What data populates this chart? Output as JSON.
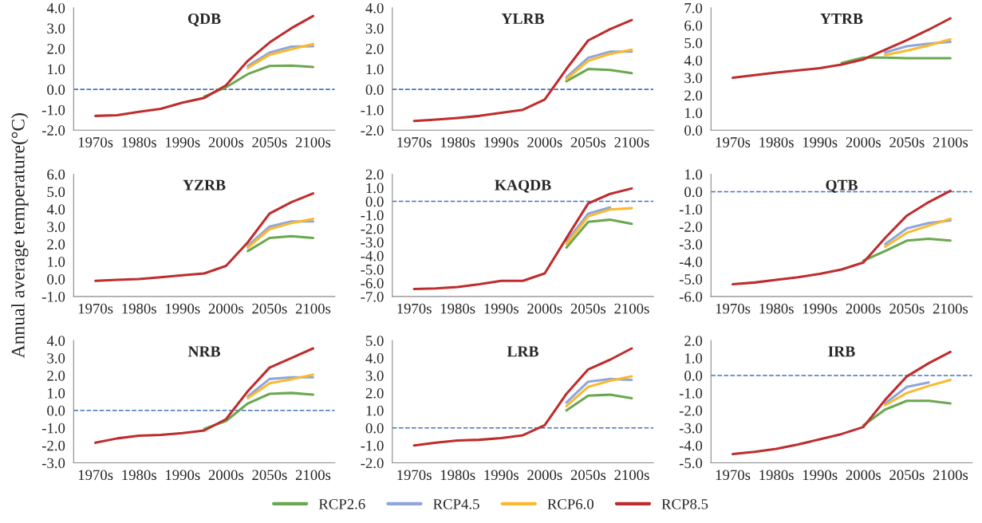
{
  "chart_data": [
    {
      "type": "line",
      "title": "QDB",
      "legend": "bottom",
      "categories": [
        "1970s",
        null,
        "1980s",
        null,
        "1990s",
        null,
        "2000s",
        null,
        "2050s",
        null,
        "2100s"
      ],
      "ylim": [
        -2,
        4
      ],
      "yticks": [
        {
          "value": -2,
          "label": "-2.0"
        },
        {
          "value": -1,
          "label": "-1.0"
        },
        {
          "value": 0,
          "label": "0.0"
        },
        {
          "value": 1,
          "label": "1.0"
        },
        {
          "value": 2,
          "label": "2.0"
        },
        {
          "value": 3,
          "label": "3.0"
        },
        {
          "value": 4,
          "label": "4.0"
        }
      ],
      "ref_lines": [
        {
          "axis": "y",
          "value": 0,
          "color": "#4472c4",
          "line_style": "dashed"
        }
      ],
      "series": [
        {
          "name": "RCP2.6",
          "color": "#6aa84f",
          "values": [
            null,
            null,
            null,
            null,
            null,
            -0.35,
            0.1,
            0.75,
            1.15,
            1.17,
            1.1
          ]
        },
        {
          "name": "RCP4.5",
          "color": "#8fa6da",
          "values": [
            null,
            null,
            null,
            null,
            null,
            null,
            null,
            1.15,
            1.8,
            2.1,
            2.12
          ]
        },
        {
          "name": "RCP6.0",
          "color": "#fbb92f",
          "values": [
            null,
            null,
            null,
            null,
            null,
            null,
            null,
            1.05,
            1.7,
            1.97,
            2.22
          ]
        },
        {
          "name": "RCP8.5",
          "color": "#be2d2d",
          "values": [
            -1.3,
            -1.27,
            -1.1,
            -0.95,
            -0.65,
            -0.42,
            0.2,
            1.4,
            2.3,
            3.0,
            3.6
          ]
        }
      ]
    },
    {
      "type": "line",
      "title": "YLRB",
      "categories": [
        "1970s",
        null,
        "1980s",
        null,
        "1990s",
        null,
        "2000s",
        null,
        "2050s",
        null,
        "2100s"
      ],
      "ylim": [
        -2,
        4
      ],
      "yticks": [
        {
          "value": -2,
          "label": "-2.0"
        },
        {
          "value": -1,
          "label": "-1.0"
        },
        {
          "value": 0,
          "label": "0.0"
        },
        {
          "value": 1,
          "label": "1.0"
        },
        {
          "value": 2,
          "label": "2.0"
        },
        {
          "value": 3,
          "label": "3.0"
        },
        {
          "value": 4,
          "label": "4.0"
        }
      ],
      "ref_lines": [
        {
          "axis": "y",
          "value": 0,
          "color": "#4472c4",
          "line_style": "dashed"
        }
      ],
      "series": [
        {
          "color": "#6aa84f",
          "values": [
            null,
            null,
            null,
            null,
            null,
            null,
            null,
            0.4,
            1.0,
            0.95,
            0.8
          ]
        },
        {
          "color": "#8fa6da",
          "values": [
            null,
            null,
            null,
            null,
            null,
            null,
            null,
            0.6,
            1.55,
            1.85,
            1.85
          ]
        },
        {
          "color": "#fbb92f",
          "values": [
            null,
            null,
            null,
            null,
            null,
            null,
            null,
            0.5,
            1.4,
            1.74,
            1.95
          ]
        },
        {
          "color": "#be2d2d",
          "values": [
            -1.55,
            -1.48,
            -1.4,
            -1.3,
            -1.15,
            -1.0,
            -0.5,
            1.0,
            2.4,
            2.95,
            3.4
          ]
        }
      ]
    },
    {
      "type": "line",
      "title": "YTRB",
      "categories": [
        "1970s",
        null,
        "1980s",
        null,
        "1990s",
        null,
        "2000s",
        null,
        "2050s",
        null,
        "2100s"
      ],
      "ylim": [
        0,
        7
      ],
      "yticks": [
        {
          "value": 0,
          "label": "0.0"
        },
        {
          "value": 1,
          "label": "1.0"
        },
        {
          "value": 2,
          "label": "2.0"
        },
        {
          "value": 3,
          "label": "3.0"
        },
        {
          "value": 4,
          "label": "4.0"
        },
        {
          "value": 5,
          "label": "5.0"
        },
        {
          "value": 6,
          "label": "6.0"
        },
        {
          "value": 7,
          "label": "7.0"
        }
      ],
      "series": [
        {
          "color": "#6aa84f",
          "values": [
            null,
            null,
            null,
            null,
            null,
            3.85,
            4.15,
            4.15,
            4.12,
            4.12,
            4.12
          ]
        },
        {
          "color": "#8fa6da",
          "values": [
            null,
            null,
            null,
            null,
            null,
            null,
            null,
            4.45,
            4.8,
            4.95,
            5.05
          ]
        },
        {
          "color": "#fbb92f",
          "values": [
            null,
            null,
            null,
            null,
            null,
            null,
            null,
            4.3,
            4.55,
            4.85,
            5.2
          ]
        },
        {
          "color": "#be2d2d",
          "values": [
            3.0,
            3.15,
            3.3,
            3.42,
            3.55,
            3.75,
            4.05,
            4.6,
            5.15,
            5.75,
            6.4
          ]
        }
      ]
    },
    {
      "type": "line",
      "title": "YZRB",
      "ylabel": "Annual average temperature(°C)",
      "categories": [
        "1970s",
        null,
        "1980s",
        null,
        "1990s",
        null,
        "2000s",
        null,
        "2050s",
        null,
        "2100s"
      ],
      "ylim": [
        -1,
        6
      ],
      "yticks": [
        {
          "value": -1,
          "label": "-1.0"
        },
        {
          "value": 0,
          "label": "0.0"
        },
        {
          "value": 1,
          "label": "1.0"
        },
        {
          "value": 2,
          "label": "2.0"
        },
        {
          "value": 3,
          "label": "3.0"
        },
        {
          "value": 4,
          "label": "4.0"
        },
        {
          "value": 5,
          "label": "5.0"
        },
        {
          "value": 6,
          "label": "6.0"
        }
      ],
      "series": [
        {
          "color": "#6aa84f",
          "values": [
            null,
            null,
            null,
            null,
            null,
            null,
            null,
            1.6,
            2.35,
            2.45,
            2.35
          ]
        },
        {
          "color": "#8fa6da",
          "values": [
            null,
            null,
            null,
            null,
            null,
            null,
            null,
            1.9,
            3.0,
            3.3,
            3.3
          ]
        },
        {
          "color": "#fbb92f",
          "values": [
            null,
            null,
            null,
            null,
            null,
            null,
            null,
            1.8,
            2.85,
            3.2,
            3.45
          ]
        },
        {
          "color": "#be2d2d",
          "values": [
            -0.1,
            -0.05,
            0.0,
            0.1,
            0.22,
            0.32,
            0.75,
            2.1,
            3.75,
            4.4,
            4.9
          ]
        }
      ]
    },
    {
      "type": "line",
      "title": "KAQDB",
      "categories": [
        "1970s",
        null,
        "1980s",
        null,
        "1990s",
        null,
        "2000s",
        null,
        "2050s",
        null,
        "2100s"
      ],
      "ylim": [
        -7,
        2
      ],
      "yticks": [
        {
          "value": -7,
          "label": "-7.0"
        },
        {
          "value": -6,
          "label": "-6.0"
        },
        {
          "value": -5,
          "label": "-5.0"
        },
        {
          "value": -4,
          "label": "-4.0"
        },
        {
          "value": -3,
          "label": "-3.0"
        },
        {
          "value": -2,
          "label": "-2.0"
        },
        {
          "value": -1,
          "label": "-1.0"
        },
        {
          "value": 0,
          "label": "0.0"
        },
        {
          "value": 1,
          "label": "1.0"
        },
        {
          "value": 2,
          "label": "2.0"
        }
      ],
      "ref_lines": [
        {
          "axis": "y",
          "value": 0,
          "color": "#4472c4",
          "line_style": "dashed"
        }
      ],
      "series": [
        {
          "color": "#6aa84f",
          "values": [
            null,
            null,
            null,
            null,
            null,
            null,
            null,
            -3.4,
            -1.5,
            -1.35,
            -1.65
          ]
        },
        {
          "color": "#8fa6da",
          "values": [
            null,
            null,
            null,
            null,
            null,
            null,
            null,
            -2.95,
            -0.9,
            -0.45,
            null
          ]
        },
        {
          "color": "#fbb92f",
          "values": [
            null,
            null,
            null,
            null,
            null,
            null,
            null,
            -3.15,
            -1.1,
            -0.6,
            -0.5
          ]
        },
        {
          "color": "#be2d2d",
          "values": [
            -6.45,
            -6.4,
            -6.3,
            -6.1,
            -5.85,
            -5.85,
            -5.3,
            -2.7,
            -0.15,
            0.55,
            0.95
          ]
        }
      ]
    },
    {
      "type": "line",
      "title": "QTB",
      "categories": [
        "1970s",
        null,
        "1980s",
        null,
        "1990s",
        null,
        "2000s",
        null,
        "2050s",
        null,
        "2100s"
      ],
      "ylim": [
        -6,
        1
      ],
      "yticks": [
        {
          "value": -6,
          "label": "-6.0"
        },
        {
          "value": -5,
          "label": "-5.0"
        },
        {
          "value": -4,
          "label": "-4.0"
        },
        {
          "value": -3,
          "label": "-3.0"
        },
        {
          "value": -2,
          "label": "-2.0"
        },
        {
          "value": -1,
          "label": "-1.0"
        },
        {
          "value": 0,
          "label": "0.0"
        },
        {
          "value": 1,
          "label": "1.0"
        }
      ],
      "ref_lines": [
        {
          "axis": "y",
          "value": 0,
          "color": "#4472c4",
          "line_style": "dashed"
        }
      ],
      "series": [
        {
          "color": "#6aa84f",
          "values": [
            null,
            null,
            null,
            null,
            null,
            null,
            -3.95,
            -3.4,
            -2.8,
            -2.7,
            -2.8
          ]
        },
        {
          "color": "#8fa6da",
          "values": [
            null,
            null,
            null,
            null,
            null,
            null,
            null,
            -3.0,
            -2.1,
            -1.8,
            -1.65
          ]
        },
        {
          "color": "#fbb92f",
          "values": [
            null,
            null,
            null,
            null,
            null,
            null,
            null,
            -3.15,
            -2.35,
            -1.95,
            -1.55
          ]
        },
        {
          "color": "#be2d2d",
          "values": [
            -5.3,
            -5.2,
            -5.05,
            -4.9,
            -4.7,
            -4.45,
            -4.05,
            -2.65,
            -1.37,
            -0.6,
            0.05
          ]
        }
      ]
    },
    {
      "type": "line",
      "title": "NRB",
      "categories": [
        "1970s",
        null,
        "1980s",
        null,
        "1990s",
        null,
        "2000s",
        null,
        "2050s",
        null,
        "2100s"
      ],
      "ylim": [
        -3,
        4
      ],
      "yticks": [
        {
          "value": -3,
          "label": "-3.0"
        },
        {
          "value": -2,
          "label": "-2.0"
        },
        {
          "value": -1,
          "label": "-1.0"
        },
        {
          "value": 0,
          "label": "0.0"
        },
        {
          "value": 1,
          "label": "1.0"
        },
        {
          "value": 2,
          "label": "2.0"
        },
        {
          "value": 3,
          "label": "3.0"
        },
        {
          "value": 4,
          "label": "4.0"
        }
      ],
      "ref_lines": [
        {
          "axis": "y",
          "value": 0,
          "color": "#4472c4",
          "line_style": "dashed"
        }
      ],
      "series": [
        {
          "color": "#6aa84f",
          "values": [
            null,
            null,
            null,
            null,
            null,
            -1.05,
            -0.6,
            0.4,
            0.95,
            1.0,
            0.9
          ]
        },
        {
          "color": "#8fa6da",
          "values": [
            null,
            null,
            null,
            null,
            null,
            null,
            null,
            0.8,
            1.8,
            1.9,
            1.9
          ]
        },
        {
          "color": "#fbb92f",
          "values": [
            null,
            null,
            null,
            null,
            null,
            null,
            null,
            0.7,
            1.55,
            1.78,
            2.05
          ]
        },
        {
          "color": "#be2d2d",
          "values": [
            -1.85,
            -1.6,
            -1.45,
            -1.4,
            -1.3,
            -1.15,
            -0.5,
            1.1,
            2.45,
            3.0,
            3.55
          ]
        }
      ]
    },
    {
      "type": "line",
      "title": "LRB",
      "categories": [
        "1970s",
        null,
        "1980s",
        null,
        "1990s",
        null,
        "2000s",
        null,
        "2050s",
        null,
        "2100s"
      ],
      "ylim": [
        -2,
        5
      ],
      "yticks": [
        {
          "value": -2,
          "label": "-2.0"
        },
        {
          "value": -1,
          "label": "-1.0"
        },
        {
          "value": 0,
          "label": "0.0"
        },
        {
          "value": 1,
          "label": "1.0"
        },
        {
          "value": 2,
          "label": "2.0"
        },
        {
          "value": 3,
          "label": "3.0"
        },
        {
          "value": 4,
          "label": "4.0"
        },
        {
          "value": 5,
          "label": "5.0"
        }
      ],
      "ref_lines": [
        {
          "axis": "y",
          "value": 0,
          "color": "#4472c4",
          "line_style": "dashed"
        }
      ],
      "series": [
        {
          "color": "#6aa84f",
          "values": [
            null,
            null,
            null,
            null,
            null,
            null,
            null,
            1.0,
            1.85,
            1.9,
            1.7
          ]
        },
        {
          "color": "#8fa6da",
          "values": [
            null,
            null,
            null,
            null,
            null,
            null,
            null,
            1.45,
            2.65,
            2.8,
            2.75
          ]
        },
        {
          "color": "#fbb92f",
          "values": [
            null,
            null,
            null,
            null,
            null,
            null,
            null,
            1.25,
            2.35,
            2.7,
            2.95
          ]
        },
        {
          "color": "#be2d2d",
          "values": [
            -1.0,
            -0.85,
            -0.72,
            -0.68,
            -0.58,
            -0.42,
            0.15,
            1.95,
            3.35,
            3.9,
            4.55
          ]
        }
      ]
    },
    {
      "type": "line",
      "title": "IRB",
      "categories": [
        "1970s",
        null,
        "1980s",
        null,
        "1990s",
        null,
        "2000s",
        null,
        "2050s",
        null,
        "2100s"
      ],
      "ylim": [
        -5,
        2
      ],
      "yticks": [
        {
          "value": -5,
          "label": "-5.0"
        },
        {
          "value": -4,
          "label": "-4.0"
        },
        {
          "value": -3,
          "label": "-3.0"
        },
        {
          "value": -2,
          "label": "-2.0"
        },
        {
          "value": -1,
          "label": "-1.0"
        },
        {
          "value": 0,
          "label": "0.0"
        },
        {
          "value": 1,
          "label": "1.0"
        },
        {
          "value": 2,
          "label": "2.0"
        }
      ],
      "ref_lines": [
        {
          "axis": "y",
          "value": 0,
          "color": "#4472c4",
          "line_style": "dashed"
        }
      ],
      "series": [
        {
          "color": "#6aa84f",
          "values": [
            null,
            null,
            null,
            null,
            null,
            null,
            -2.85,
            -1.95,
            -1.45,
            -1.45,
            -1.6
          ]
        },
        {
          "color": "#8fa6da",
          "values": [
            null,
            null,
            null,
            null,
            null,
            null,
            null,
            -1.6,
            -0.65,
            -0.4,
            null
          ]
        },
        {
          "color": "#fbb92f",
          "values": [
            null,
            null,
            null,
            null,
            null,
            null,
            null,
            -1.7,
            -1.0,
            -0.6,
            -0.25
          ]
        },
        {
          "color": "#be2d2d",
          "values": [
            -4.5,
            -4.37,
            -4.2,
            -3.95,
            -3.65,
            -3.35,
            -2.95,
            -1.4,
            -0.05,
            0.7,
            1.35
          ]
        }
      ]
    }
  ]
}
